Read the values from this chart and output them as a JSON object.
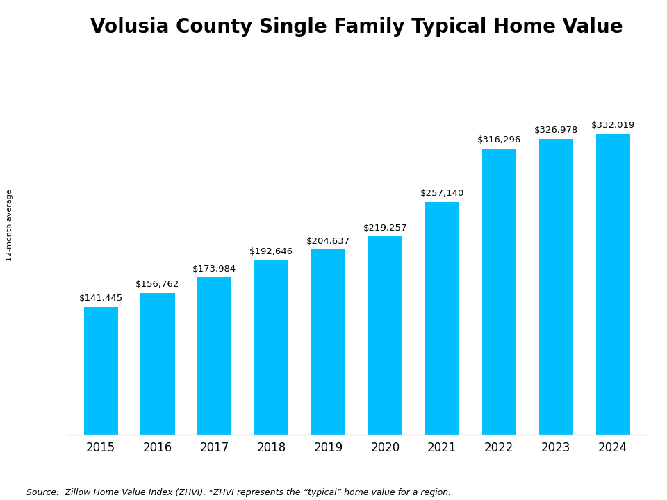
{
  "title": "Volusia County Single Family Typical Home Value",
  "ylabel": "12-month average",
  "source_text": "Source:  Zillow Home Value Index (ZHVI). *ZHVI represents the “typical” home value for a region.",
  "categories": [
    "2015",
    "2016",
    "2017",
    "2018",
    "2019",
    "2020",
    "2021",
    "2022",
    "2023",
    "2024"
  ],
  "values": [
    141445,
    156762,
    173984,
    192646,
    204637,
    219257,
    257140,
    316296,
    326978,
    332019
  ],
  "bar_color": "#00BFFF",
  "title_fontsize": 20,
  "label_fontsize": 9.5,
  "tick_fontsize": 12,
  "ylabel_fontsize": 8,
  "source_fontsize": 9,
  "background_color": "#FFFFFF",
  "bar_width": 0.6,
  "ylim_max_factor": 1.28
}
